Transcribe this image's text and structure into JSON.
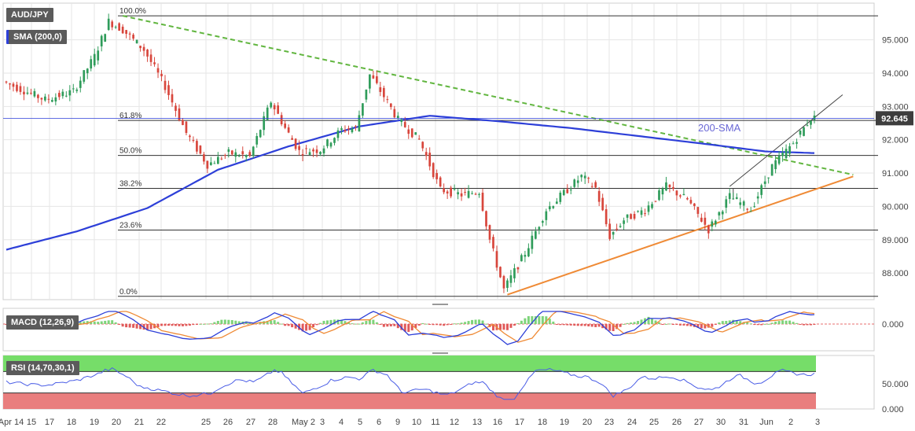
{
  "chart_data": [
    {
      "type": "candlestick",
      "title": "AUD/JPY",
      "indicator_label": "SMA (200,0)",
      "sma_text": "200-SMA",
      "price_tag": "92.645",
      "y_ticks": [
        "95.000",
        "94.000",
        "93.000",
        "92.000",
        "91.000",
        "90.000",
        "89.000",
        "88.000"
      ],
      "y_tick_values": [
        95,
        94,
        93,
        92,
        91,
        90,
        89,
        88
      ],
      "ylim": [
        87.2,
        96.1
      ],
      "fib_levels": [
        {
          "label": "100.0%",
          "value": 95.72
        },
        {
          "label": "61.8%",
          "value": 92.58
        },
        {
          "label": "50.0%",
          "value": 91.53
        },
        {
          "label": "38.2%",
          "value": 90.54
        },
        {
          "label": "23.6%",
          "value": 89.29
        },
        {
          "label": "0.0%",
          "value": 87.3
        }
      ],
      "x_tick_labels": [
        "Apr 14",
        "15",
        "17",
        "18",
        "19",
        "20",
        "21",
        "22",
        "25",
        "26",
        "27",
        "28",
        "May 2",
        "3",
        "4",
        "5",
        "6",
        "9",
        "10",
        "11",
        "12",
        "13",
        "16",
        "17",
        "18",
        "19",
        "20",
        "23",
        "24",
        "25",
        "26",
        "27",
        "30",
        "31",
        "Jun",
        "2",
        "3"
      ],
      "price_keypoints": [
        {
          "i": 0,
          "p": 93.75
        },
        {
          "i": 12,
          "p": 93.2
        },
        {
          "i": 20,
          "p": 93.45
        },
        {
          "i": 26,
          "p": 94.5
        },
        {
          "i": 30,
          "p": 95.55
        },
        {
          "i": 34,
          "p": 95.3
        },
        {
          "i": 40,
          "p": 94.7
        },
        {
          "i": 46,
          "p": 93.6
        },
        {
          "i": 52,
          "p": 92.2
        },
        {
          "i": 58,
          "p": 91.25
        },
        {
          "i": 64,
          "p": 91.6
        },
        {
          "i": 70,
          "p": 91.5
        },
        {
          "i": 76,
          "p": 93.15
        },
        {
          "i": 80,
          "p": 92.35
        },
        {
          "i": 84,
          "p": 91.65
        },
        {
          "i": 90,
          "p": 91.7
        },
        {
          "i": 96,
          "p": 92.3
        },
        {
          "i": 100,
          "p": 92.35
        },
        {
          "i": 104,
          "p": 93.95
        },
        {
          "i": 108,
          "p": 93.3
        },
        {
          "i": 112,
          "p": 92.6
        },
        {
          "i": 118,
          "p": 92.0
        },
        {
          "i": 124,
          "p": 90.5
        },
        {
          "i": 130,
          "p": 90.35
        },
        {
          "i": 135,
          "p": 90.45
        },
        {
          "i": 138,
          "p": 89.0
        },
        {
          "i": 142,
          "p": 87.5
        },
        {
          "i": 148,
          "p": 88.6
        },
        {
          "i": 154,
          "p": 89.9
        },
        {
          "i": 160,
          "p": 90.5
        },
        {
          "i": 164,
          "p": 90.9
        },
        {
          "i": 168,
          "p": 90.55
        },
        {
          "i": 172,
          "p": 89.1
        },
        {
          "i": 176,
          "p": 89.6
        },
        {
          "i": 182,
          "p": 89.9
        },
        {
          "i": 188,
          "p": 90.6
        },
        {
          "i": 194,
          "p": 90.2
        },
        {
          "i": 200,
          "p": 89.3
        },
        {
          "i": 206,
          "p": 90.3
        },
        {
          "i": 212,
          "p": 89.9
        },
        {
          "i": 218,
          "p": 91.2
        },
        {
          "i": 224,
          "p": 91.9
        },
        {
          "i": 229,
          "p": 92.65
        }
      ],
      "sma_keypoints": [
        {
          "i": 0,
          "p": 88.7
        },
        {
          "i": 20,
          "p": 89.25
        },
        {
          "i": 40,
          "p": 89.95
        },
        {
          "i": 60,
          "p": 91.1
        },
        {
          "i": 80,
          "p": 91.8
        },
        {
          "i": 100,
          "p": 92.4
        },
        {
          "i": 120,
          "p": 92.72
        },
        {
          "i": 140,
          "p": 92.55
        },
        {
          "i": 160,
          "p": 92.35
        },
        {
          "i": 180,
          "p": 92.1
        },
        {
          "i": 200,
          "p": 91.85
        },
        {
          "i": 215,
          "p": 91.65
        },
        {
          "i": 229,
          "p": 91.6
        }
      ],
      "trendlines": [
        {
          "name": "resistance-dashed",
          "color": "#62b640",
          "from": {
            "i": 33,
            "p": 95.72
          },
          "to": {
            "i": 240,
            "p": 90.95
          }
        },
        {
          "name": "support",
          "color": "#ef8a35",
          "from": {
            "i": 142,
            "p": 87.35
          },
          "to": {
            "i": 240,
            "p": 90.9
          }
        },
        {
          "name": "channel-top",
          "color": "#444444",
          "from": {
            "i": 205,
            "p": 90.6
          },
          "to": {
            "i": 237,
            "p": 93.35
          }
        }
      ]
    },
    {
      "type": "histogram",
      "title": "MACD (12,26,9)",
      "y_ticks": [
        "0.000"
      ],
      "description_series": [
        "macd",
        "signal",
        "histogram"
      ]
    },
    {
      "type": "line",
      "title": "RSI (14,70,30,1)",
      "y_ticks": [
        "50.000",
        "0.000"
      ],
      "overbought": 70,
      "oversold": 30
    }
  ],
  "colors": {
    "bull": "#2f9c5a",
    "bear": "#d8463c",
    "sma": "#2d3fd8",
    "fib": "#333333",
    "grid": "#e6e6e6",
    "macd": "#2d3fd8",
    "signal": "#ef8a35",
    "rsi": "#4a5de6",
    "rsi_ob": "#76dd69",
    "rsi_os": "#e97e7e",
    "axis_text": "#444444"
  }
}
